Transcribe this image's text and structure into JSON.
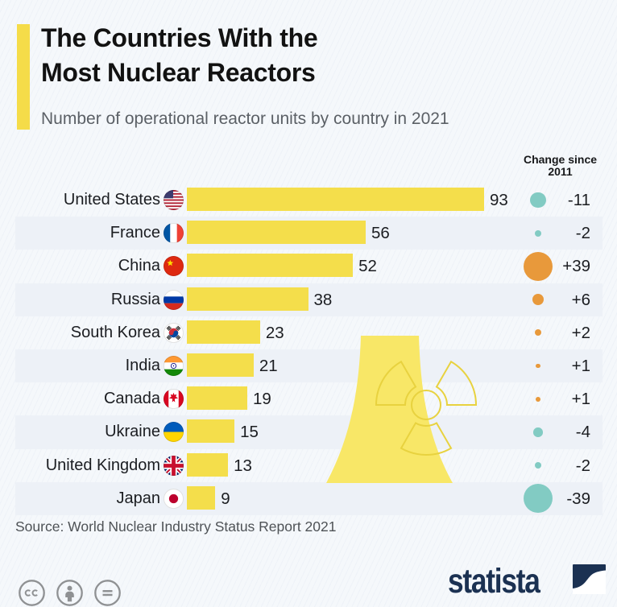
{
  "header": {
    "title_line1": "The Countries With the",
    "title_line2": "Most Nuclear Reactors",
    "subtitle": "Number of operational reactor units by country in 2021",
    "change_header_line1": "Change since",
    "change_header_line2": "2011"
  },
  "colors": {
    "accent_yellow": "#F5DC49",
    "bar_yellow": "#F4DE4B",
    "tower_yellow": "#F8E767",
    "radiation_stroke": "#E8D23F",
    "positive": "#E8993B",
    "negative": "#82CBC3",
    "navy": "#1B3152",
    "stripe": "#EDF1F7",
    "background": "#F5F8FB"
  },
  "chart_data": {
    "type": "bar",
    "title": "The Countries With the Most Nuclear Reactors",
    "subtitle": "Number of operational reactor units by country in 2021",
    "unit": "operational reactor units",
    "year": 2021,
    "orientation": "horizontal",
    "grid": false,
    "legend_position": "none",
    "xlim": [
      0,
      100
    ],
    "categories": [
      "United States",
      "France",
      "China",
      "Russia",
      "South Korea",
      "India",
      "Canada",
      "Ukraine",
      "United Kingdom",
      "Japan"
    ],
    "values": [
      93,
      56,
      52,
      38,
      23,
      21,
      19,
      15,
      13,
      9
    ],
    "series": [
      {
        "name": "Operational reactor units 2021",
        "values": [
          93,
          56,
          52,
          38,
          23,
          21,
          19,
          15,
          13,
          9
        ]
      },
      {
        "name": "Change since 2011",
        "values": [
          -11,
          -2,
          39,
          6,
          2,
          1,
          1,
          -4,
          -2,
          -39
        ]
      }
    ],
    "rows": [
      {
        "country": "United States",
        "flag": "us",
        "value": 93,
        "value_label": "93",
        "change": -11,
        "change_label": "-11"
      },
      {
        "country": "France",
        "flag": "fr",
        "value": 56,
        "value_label": "56",
        "change": -2,
        "change_label": "-2"
      },
      {
        "country": "China",
        "flag": "cn",
        "value": 52,
        "value_label": "52",
        "change": 39,
        "change_label": "+39"
      },
      {
        "country": "Russia",
        "flag": "ru",
        "value": 38,
        "value_label": "38",
        "change": 6,
        "change_label": "+6"
      },
      {
        "country": "South Korea",
        "flag": "kr",
        "value": 23,
        "value_label": "23",
        "change": 2,
        "change_label": "+2"
      },
      {
        "country": "India",
        "flag": "in",
        "value": 21,
        "value_label": "21",
        "change": 1,
        "change_label": "+1"
      },
      {
        "country": "Canada",
        "flag": "ca",
        "value": 19,
        "value_label": "19",
        "change": 1,
        "change_label": "+1"
      },
      {
        "country": "Ukraine",
        "flag": "ua",
        "value": 15,
        "value_label": "15",
        "change": -4,
        "change_label": "-4"
      },
      {
        "country": "United Kingdom",
        "flag": "gb",
        "value": 13,
        "value_label": "13",
        "change": -2,
        "change_label": "-2"
      },
      {
        "country": "Japan",
        "flag": "jp",
        "value": 9,
        "value_label": "9",
        "change": -39,
        "change_label": "-39"
      }
    ]
  },
  "footer": {
    "source": "Source: World Nuclear Industry Status Report 2021",
    "license_icons": [
      "cc-icon",
      "attribution-person-icon",
      "no-derivatives-equals-icon"
    ],
    "logo_text": "statista"
  }
}
